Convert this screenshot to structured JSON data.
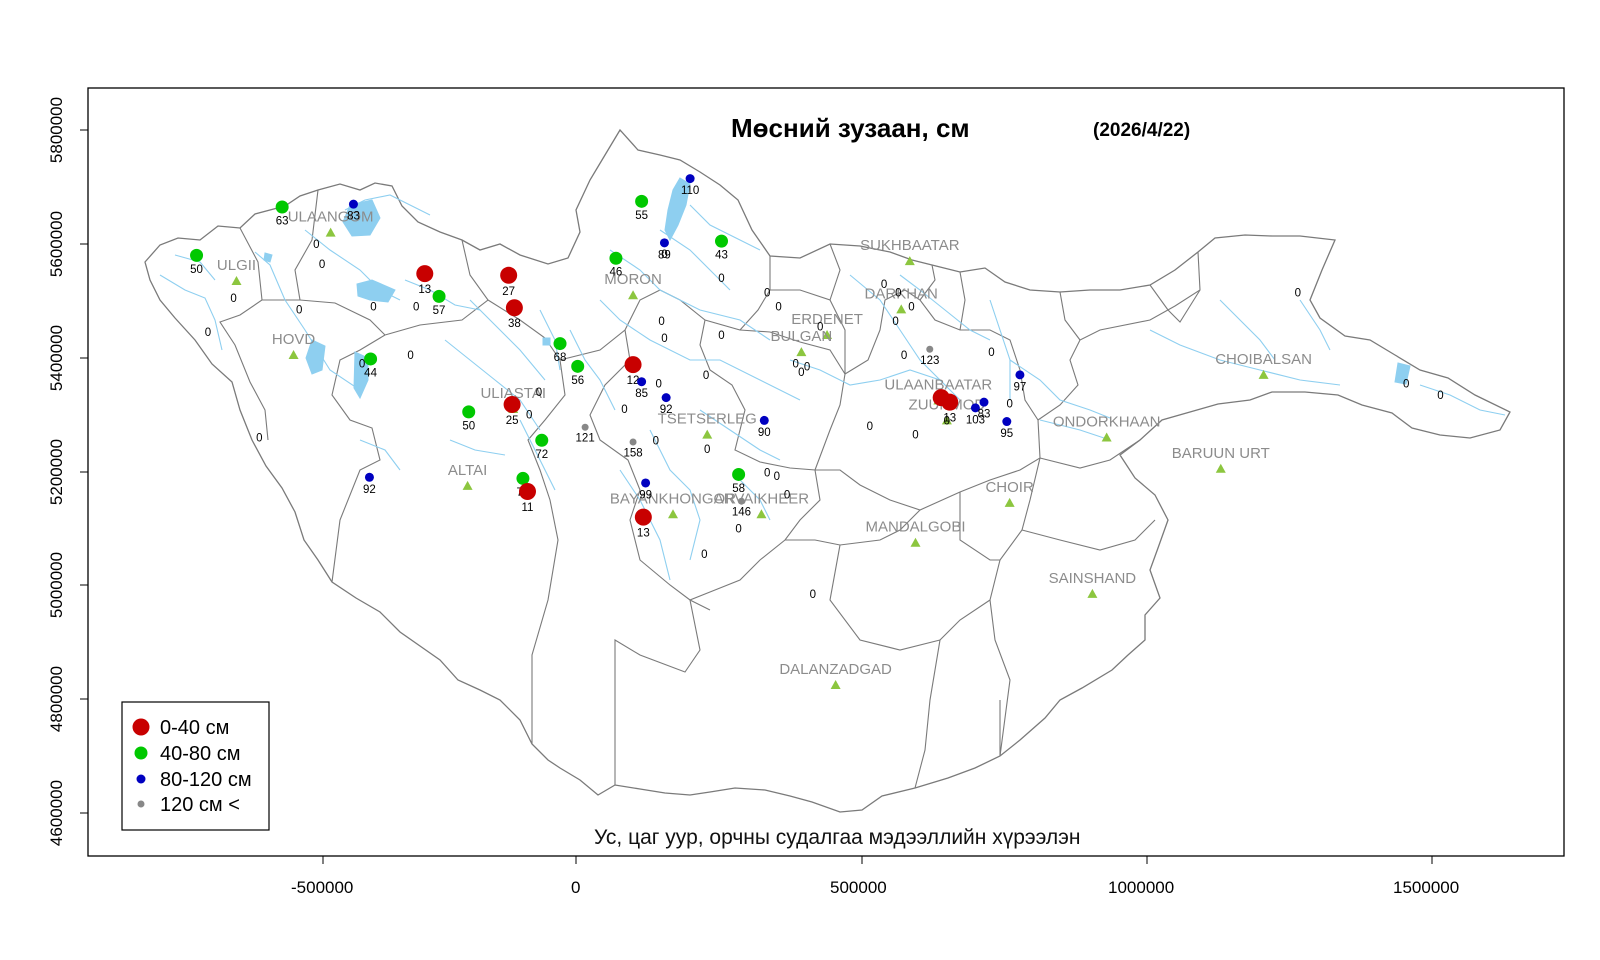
{
  "title": "Мөсний зузаан, см",
  "date": "(2026/4/22)",
  "credit": "Ус, цаг уур, орчны судалгаа мэдээллийн хүрээлэн",
  "x_ticks": [
    "-500000",
    "0",
    "500000",
    "1000000",
    "1500000"
  ],
  "y_ticks": [
    "4600000",
    "4800000",
    "5000000",
    "5200000",
    "5400000",
    "5600000",
    "5800000"
  ],
  "legend": [
    {
      "label": "0-40 см",
      "color": "#c80000"
    },
    {
      "label": "40-80 см",
      "color": "#00c800"
    },
    {
      "label": "80-120 см",
      "color": "#0000c0"
    },
    {
      "label": "120 см <",
      "color": "#888888"
    }
  ],
  "colors": {
    "border": "#808080",
    "river": "#8ecff0",
    "lake": "#8ecff0",
    "city_marker": "#8cc63f",
    "city_label": "#8c8c8c"
  },
  "cities": [
    {
      "name": "ULAANGOM",
      "x": -430000,
      "y": 5620000
    },
    {
      "name": "ULGII",
      "x": -595000,
      "y": 5535000
    },
    {
      "name": "HOVD",
      "x": -495000,
      "y": 5405000
    },
    {
      "name": "ALTAI",
      "x": -190000,
      "y": 5175000
    },
    {
      "name": "ULIASTAI",
      "x": -110000,
      "y": 5310000
    },
    {
      "name": "MORON",
      "x": 100000,
      "y": 5510000
    },
    {
      "name": "TSETSERLEG",
      "x": 230000,
      "y": 5265000
    },
    {
      "name": "BAYANKHONGOR",
      "x": 170000,
      "y": 5125000
    },
    {
      "name": "ARVAIKHEER",
      "x": 325000,
      "y": 5125000
    },
    {
      "name": "ERDENET",
      "x": 440000,
      "y": 5440000
    },
    {
      "name": "BULGAN",
      "x": 395000,
      "y": 5410000
    },
    {
      "name": "SUKHBAATAR",
      "x": 585000,
      "y": 5570000
    },
    {
      "name": "DARKHAN",
      "x": 570000,
      "y": 5485000
    },
    {
      "name": "ULAANBAATAR",
      "x": 635000,
      "y": 5325000
    },
    {
      "name": "ZUUNMOD",
      "x": 650000,
      "y": 5290000
    },
    {
      "name": "MANDALGOBI",
      "x": 595000,
      "y": 5075000
    },
    {
      "name": "CHOIR",
      "x": 760000,
      "y": 5145000
    },
    {
      "name": "DALANZADGAD",
      "x": 455000,
      "y": 4825000
    },
    {
      "name": "SAINSHAND",
      "x": 905000,
      "y": 4985000
    },
    {
      "name": "ONDORKHAAN",
      "x": 930000,
      "y": 5260000
    },
    {
      "name": "BARUUN URT",
      "x": 1130000,
      "y": 5205000
    },
    {
      "name": "CHOIBALSAN",
      "x": 1205000,
      "y": 5370000
    }
  ],
  "stations": [
    {
      "x": -515000,
      "y": 5665000,
      "value": "63",
      "class": 1
    },
    {
      "x": -390000,
      "y": 5670000,
      "value": "83",
      "class": 2
    },
    {
      "x": -665000,
      "y": 5580000,
      "value": "50",
      "class": 1
    },
    {
      "x": -455000,
      "y": 5600000,
      "value": "0",
      "class": 0
    },
    {
      "x": -445000,
      "y": 5565000,
      "value": "0",
      "class": 0
    },
    {
      "x": -485000,
      "y": 5485000,
      "value": "0",
      "class": 0
    },
    {
      "x": -600000,
      "y": 5505000,
      "value": "0",
      "class": 0
    },
    {
      "x": -645000,
      "y": 5445000,
      "value": "0",
      "class": 0
    },
    {
      "x": -265000,
      "y": 5548000,
      "value": "13",
      "class": 0
    },
    {
      "x": -240000,
      "y": 5508000,
      "value": "57",
      "class": 1
    },
    {
      "x": -355000,
      "y": 5490000,
      "value": "0",
      "class": 0
    },
    {
      "x": -280000,
      "y": 5490000,
      "value": "0",
      "class": 0
    },
    {
      "x": -118000,
      "y": 5545000,
      "value": "27",
      "class": 0
    },
    {
      "x": -108000,
      "y": 5488000,
      "value": "38",
      "class": 0
    },
    {
      "x": -360000,
      "y": 5398000,
      "value": "44",
      "class": 1
    },
    {
      "x": -375000,
      "y": 5390000,
      "value": "0",
      "class": 0
    },
    {
      "x": -290000,
      "y": 5405000,
      "value": "0",
      "class": 0
    },
    {
      "x": -28000,
      "y": 5425000,
      "value": "68",
      "class": 1
    },
    {
      "x": 3000,
      "y": 5385000,
      "value": "56",
      "class": 1
    },
    {
      "x": -188000,
      "y": 5305000,
      "value": "50",
      "class": 1
    },
    {
      "x": -112000,
      "y": 5318000,
      "value": "25",
      "class": 0
    },
    {
      "x": -82000,
      "y": 5300000,
      "value": "0",
      "class": 0
    },
    {
      "x": -65000,
      "y": 5340000,
      "value": "0",
      "class": 0
    },
    {
      "x": -60000,
      "y": 5255000,
      "value": "72",
      "class": 1
    },
    {
      "x": 16000,
      "y": 5278000,
      "value": "121",
      "class": 3
    },
    {
      "x": 100000,
      "y": 5252000,
      "value": "158",
      "class": 3
    },
    {
      "x": -93000,
      "y": 5188000,
      "value": "75",
      "class": 1
    },
    {
      "x": -85000,
      "y": 5165000,
      "value": "11",
      "class": 0
    },
    {
      "x": -362000,
      "y": 5190000,
      "value": "92",
      "class": 2
    },
    {
      "x": -555000,
      "y": 5260000,
      "value": "0",
      "class": 0
    },
    {
      "x": 115000,
      "y": 5675000,
      "value": "55",
      "class": 1
    },
    {
      "x": 200000,
      "y": 5715000,
      "value": "110",
      "class": 2
    },
    {
      "x": 155000,
      "y": 5602000,
      "value": "89",
      "class": 2
    },
    {
      "x": 155000,
      "y": 5582000,
      "value": "0",
      "class": 0
    },
    {
      "x": 255000,
      "y": 5605000,
      "value": "43",
      "class": 1
    },
    {
      "x": 70000,
      "y": 5575000,
      "value": "46",
      "class": 1
    },
    {
      "x": 255000,
      "y": 5540000,
      "value": "0",
      "class": 0
    },
    {
      "x": 335000,
      "y": 5515000,
      "value": "0",
      "class": 0
    },
    {
      "x": 150000,
      "y": 5465000,
      "value": "0",
      "class": 0
    },
    {
      "x": 155000,
      "y": 5435000,
      "value": "0",
      "class": 0
    },
    {
      "x": 255000,
      "y": 5440000,
      "value": "0",
      "class": 0
    },
    {
      "x": 100000,
      "y": 5388000,
      "value": "12",
      "class": 0
    },
    {
      "x": 115000,
      "y": 5358000,
      "value": "85",
      "class": 2
    },
    {
      "x": 145000,
      "y": 5355000,
      "value": "0",
      "class": 0
    },
    {
      "x": 158000,
      "y": 5330000,
      "value": "92",
      "class": 2
    },
    {
      "x": 85000,
      "y": 5310000,
      "value": "0",
      "class": 0
    },
    {
      "x": 140000,
      "y": 5255000,
      "value": "0",
      "class": 0
    },
    {
      "x": 228000,
      "y": 5370000,
      "value": "0",
      "class": 0
    },
    {
      "x": 230000,
      "y": 5240000,
      "value": "0",
      "class": 0
    },
    {
      "x": 330000,
      "y": 5290000,
      "value": "90",
      "class": 2
    },
    {
      "x": 285000,
      "y": 5195000,
      "value": "58",
      "class": 1
    },
    {
      "x": 122000,
      "y": 5180000,
      "value": "99",
      "class": 2
    },
    {
      "x": 118000,
      "y": 5120000,
      "value": "13",
      "class": 0
    },
    {
      "x": 290000,
      "y": 5148000,
      "value": "146",
      "class": 3
    },
    {
      "x": 285000,
      "y": 5100000,
      "value": "0",
      "class": 0
    },
    {
      "x": 335000,
      "y": 5198000,
      "value": "0",
      "class": 0
    },
    {
      "x": 352000,
      "y": 5192000,
      "value": "0",
      "class": 0
    },
    {
      "x": 370000,
      "y": 5160000,
      "value": "0",
      "class": 0
    },
    {
      "x": 225000,
      "y": 5055000,
      "value": "0",
      "class": 0
    },
    {
      "x": 415000,
      "y": 4985000,
      "value": "0",
      "class": 0
    },
    {
      "x": 385000,
      "y": 5390000,
      "value": "0",
      "class": 0
    },
    {
      "x": 395000,
      "y": 5375000,
      "value": "0",
      "class": 0
    },
    {
      "x": 405000,
      "y": 5385000,
      "value": "0",
      "class": 0
    },
    {
      "x": 428000,
      "y": 5455000,
      "value": "0",
      "class": 0
    },
    {
      "x": 355000,
      "y": 5490000,
      "value": "0",
      "class": 0
    },
    {
      "x": 540000,
      "y": 5530000,
      "value": "0",
      "class": 0
    },
    {
      "x": 565000,
      "y": 5515000,
      "value": "0",
      "class": 0
    },
    {
      "x": 588000,
      "y": 5490000,
      "value": "0",
      "class": 0
    },
    {
      "x": 560000,
      "y": 5465000,
      "value": "0",
      "class": 0
    },
    {
      "x": 620000,
      "y": 5415000,
      "value": "123",
      "class": 3
    },
    {
      "x": 575000,
      "y": 5405000,
      "value": "0",
      "class": 0
    },
    {
      "x": 728000,
      "y": 5410000,
      "value": "0",
      "class": 0
    },
    {
      "x": 778000,
      "y": 5370000,
      "value": "97",
      "class": 2
    },
    {
      "x": 640000,
      "y": 5330000,
      "value": "",
      "class": 0
    },
    {
      "x": 655000,
      "y": 5322000,
      "value": "13",
      "class": 0
    },
    {
      "x": 700000,
      "y": 5312000,
      "value": "103",
      "class": 2
    },
    {
      "x": 715000,
      "y": 5322000,
      "value": "83",
      "class": 2
    },
    {
      "x": 755000,
      "y": 5288000,
      "value": "95",
      "class": 2
    },
    {
      "x": 760000,
      "y": 5320000,
      "value": "0",
      "class": 0
    },
    {
      "x": 650000,
      "y": 5290000,
      "value": "0",
      "class": 0
    },
    {
      "x": 515000,
      "y": 5280000,
      "value": "0",
      "class": 0
    },
    {
      "x": 595000,
      "y": 5265000,
      "value": "0",
      "class": 0
    },
    {
      "x": 1265000,
      "y": 5515000,
      "value": "0",
      "class": 0
    },
    {
      "x": 1455000,
      "y": 5355000,
      "value": "0",
      "class": 0
    },
    {
      "x": 1515000,
      "y": 5335000,
      "value": "0",
      "class": 0
    }
  ]
}
